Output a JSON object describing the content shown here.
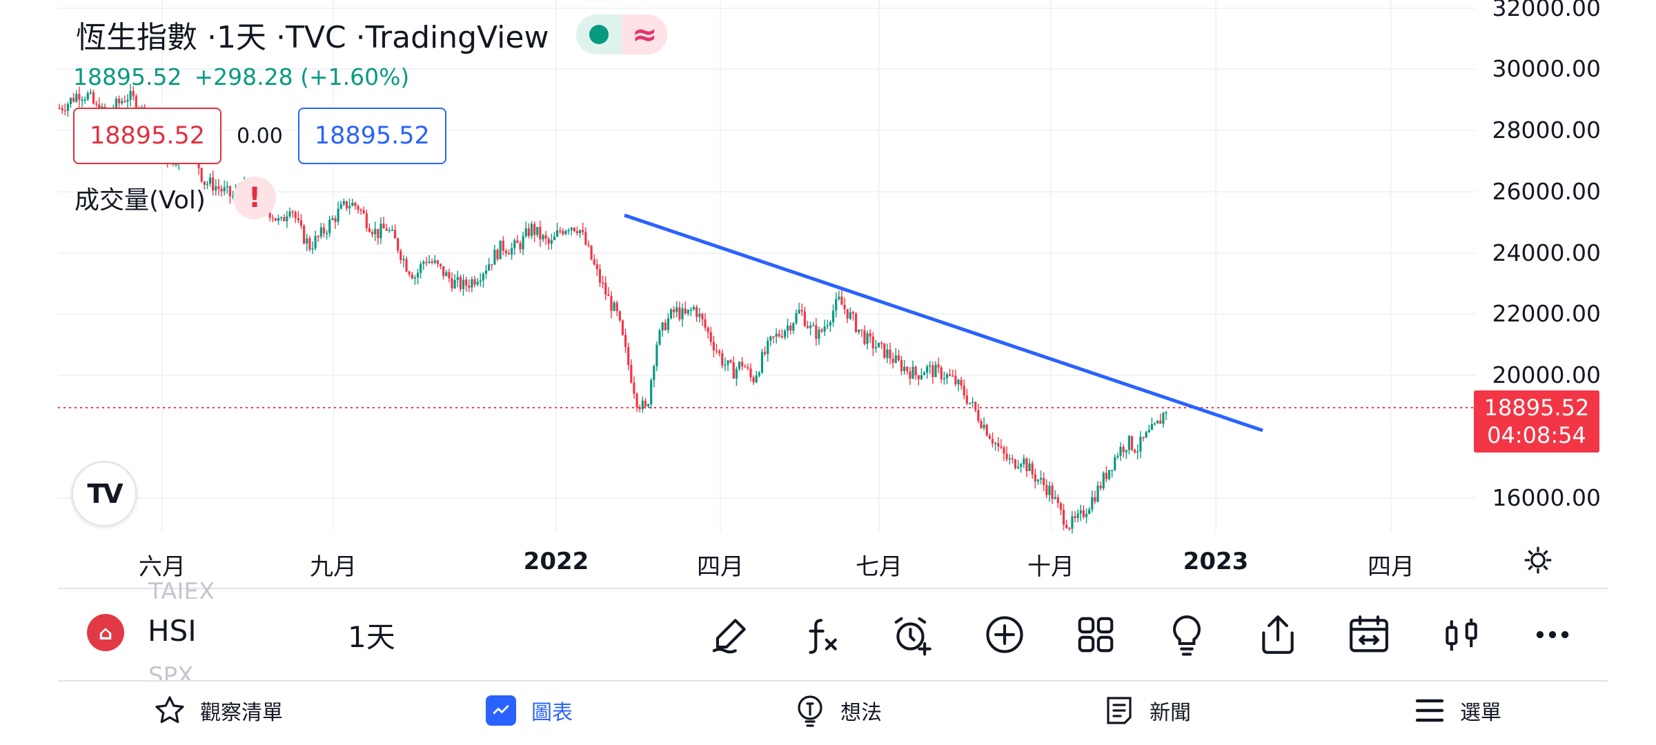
{
  "legend": {
    "title": "恆生指數 ·1天 ·TVC ·TradingView",
    "last_price": "18895.52",
    "change": "+298.28 (+1.60%)",
    "box_left": "18895.52",
    "box_mid": "0.00",
    "box_right": "18895.52",
    "volume_label": "成交量(Vol)",
    "warning_glyph": "!",
    "pill_right_glyph": "≈"
  },
  "logo_text": "TV",
  "price_tag": {
    "price": "18895.52",
    "countdown": "04:08:54"
  },
  "colors": {
    "up": "#089981",
    "down": "#f23645",
    "trendline": "#2962ff",
    "accent": "#2962ff"
  },
  "chart_data": {
    "type": "candlestick",
    "yaxis_ticks": [
      "32000.00",
      "30000.00",
      "28000.00",
      "26000.00",
      "24000.00",
      "22000.00",
      "20000.00",
      "16000.00"
    ],
    "xaxis_ticks": [
      {
        "label": "六月",
        "bold": false
      },
      {
        "label": "九月",
        "bold": false
      },
      {
        "label": "2022",
        "bold": true
      },
      {
        "label": "四月",
        "bold": false
      },
      {
        "label": "七月",
        "bold": false
      },
      {
        "label": "十月",
        "bold": false
      },
      {
        "label": "2023",
        "bold": true
      },
      {
        "label": "四月",
        "bold": false
      }
    ],
    "approx_daily_closes_from_may_2021": [
      28700,
      28900,
      29200,
      29100,
      28600,
      28500,
      28800,
      29100,
      28900,
      28400,
      27800,
      27200,
      26800,
      27500,
      27300,
      26300,
      26200,
      26000,
      25800,
      26100,
      25900,
      25600,
      25300,
      24900,
      25600,
      24700,
      24200,
      24500,
      24900,
      25300,
      25600,
      25500,
      25000,
      24600,
      24800,
      24300,
      23600,
      23200,
      23800,
      23600,
      23300,
      23000,
      22900,
      23100,
      23400,
      23800,
      24200,
      24100,
      24300,
      24800,
      24500,
      24200,
      24700,
      24900,
      24800,
      24000,
      23200,
      22500,
      21900,
      20500,
      19200,
      18800,
      21000,
      21700,
      22100,
      21900,
      22200,
      21600,
      21000,
      20400,
      20100,
      20400,
      19800,
      20500,
      21100,
      21400,
      21700,
      22100,
      21500,
      21300,
      21900,
      22400,
      22000,
      21500,
      21100,
      20900,
      20700,
      20400,
      20200,
      20000,
      20200,
      20100,
      20000,
      19800,
      19400,
      18900,
      18400,
      17900,
      17400,
      17100,
      17300,
      16800,
      16500,
      16200,
      15500,
      15100,
      15300,
      15800,
      16300,
      16900,
      17500,
      17800,
      17600,
      18000,
      18300,
      18895.52
    ],
    "trendline": {
      "from": {
        "date": "2022-02",
        "price": 25000
      },
      "to": {
        "date": "2022-12",
        "price": 18300
      }
    },
    "current_price": 18895.52
  },
  "ghost_symbols": {
    "above": "TAIEX",
    "below": "SPX"
  },
  "toolbar": {
    "symbol": "HSI",
    "interval": "1天"
  },
  "tools": [
    "draw-icon",
    "function-icon",
    "alert-icon",
    "add-icon",
    "layouts-icon",
    "ideas-icon",
    "share-icon",
    "replay-icon",
    "chart-type-icon",
    "more-icon"
  ],
  "nav": {
    "watchlist": "觀察清單",
    "chart": "圖表",
    "ideas": "想法",
    "news": "新聞",
    "menu": "選單"
  }
}
